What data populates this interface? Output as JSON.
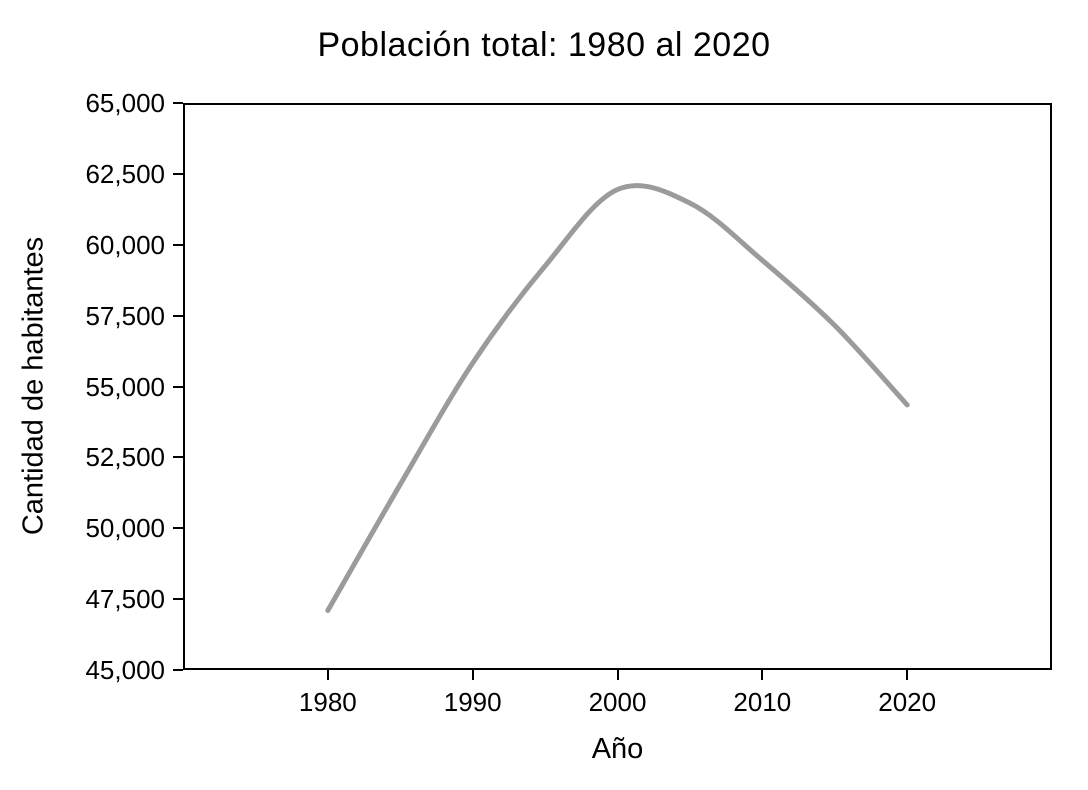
{
  "chart_data": {
    "type": "line",
    "title": "Población total: 1980 al 2020",
    "xlabel": "Año",
    "ylabel": "Cantidad de habitantes",
    "x": [
      1980,
      1985,
      1990,
      1995,
      2000,
      2005,
      2010,
      2015,
      2020
    ],
    "values": [
      47100,
      51550,
      55830,
      59250,
      61950,
      61470,
      59450,
      57150,
      54350
    ],
    "peak_note": "curve peaks near year 2001 at about 62100",
    "xlim": [
      1970,
      2030
    ],
    "ylim": [
      45000,
      65000
    ],
    "x_ticks": [
      1980,
      1990,
      2000,
      2010,
      2020
    ],
    "x_tick_labels": [
      "1980",
      "1990",
      "2000",
      "2010",
      "2020"
    ],
    "y_ticks": [
      45000,
      47500,
      50000,
      52500,
      55000,
      57500,
      60000,
      62500,
      65000
    ],
    "y_tick_labels": [
      "45,000",
      "47,500",
      "50,000",
      "52,500",
      "55,000",
      "57,500",
      "60,000",
      "62,500",
      "65,000"
    ],
    "grid": false,
    "legend": "none",
    "line_color": "#9b9b9b",
    "line_width": 5,
    "axis_color": "#000000",
    "background_color": "#ffffff"
  }
}
